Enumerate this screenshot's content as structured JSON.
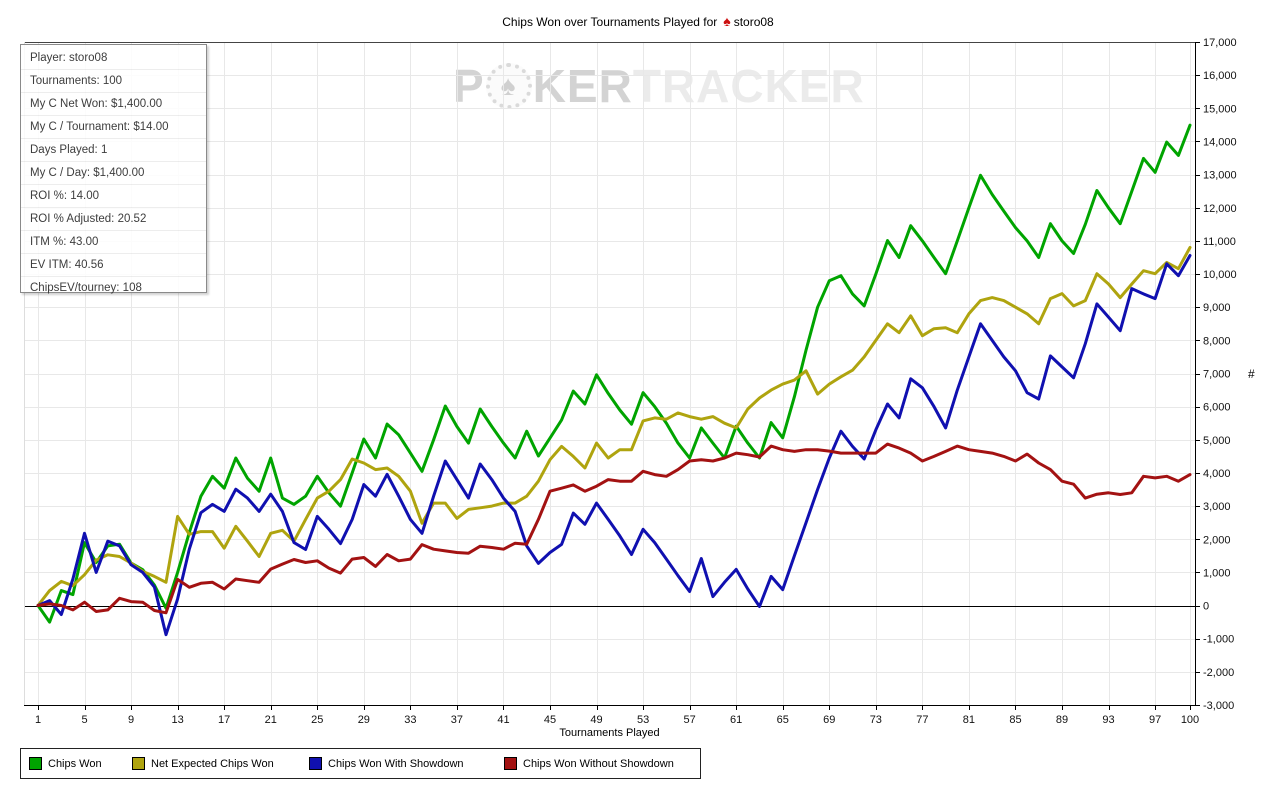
{
  "title": {
    "prefix": "Chips Won over Tournaments Played for",
    "player": "storo08",
    "spade_icon": "♠"
  },
  "watermark": {
    "p1": "P",
    "chip_symbol": "♠",
    "p2": "KER",
    "p3": "TRACKER"
  },
  "stats_panel": {
    "rows": [
      "Player: storo08",
      "Tournaments: 100",
      "My C Net Won: $1,400.00",
      "My C / Tournament: $14.00",
      "Days Played: 1",
      "My C / Day: $1,400.00",
      "ROI %: 14.00",
      "ROI % Adjusted: 20.52",
      "ITM %: 43.00",
      "EV ITM: 40.56",
      "ChipsEV/tourney: 108"
    ]
  },
  "axes": {
    "x": {
      "title": "Tournaments Played",
      "ticks": [
        1,
        5,
        9,
        13,
        17,
        21,
        25,
        29,
        33,
        37,
        41,
        45,
        49,
        53,
        57,
        61,
        65,
        69,
        73,
        77,
        81,
        85,
        89,
        93,
        97,
        100
      ]
    },
    "y": {
      "title": "#",
      "min": -3000,
      "max": 17000,
      "step": 1000
    }
  },
  "legend": {
    "item_offsets": [
      8,
      111,
      288,
      483
    ]
  },
  "colors": {
    "grid": "#e8e8e8",
    "axis": "#000000",
    "top_border": "#444444",
    "left_border": "#dddddd",
    "zero_line": "#000000"
  },
  "chart_data": {
    "type": "line",
    "title": "Chips Won over Tournaments Played for storo08",
    "xlabel": "Tournaments Played",
    "ylabel": "#",
    "x_start": 1,
    "x_end": 100,
    "ylim": [
      -3000,
      17000
    ],
    "y_tick_step": 1000,
    "grid": true,
    "legend_position": "bottom",
    "series": [
      {
        "name": "Chips Won",
        "color": "#00A400",
        "values": [
          0,
          -500,
          450,
          330,
          1900,
          1300,
          1800,
          1850,
          1280,
          1080,
          620,
          -80,
          1000,
          2200,
          3300,
          3900,
          3540,
          4450,
          3840,
          3450,
          4450,
          3240,
          3050,
          3300,
          3900,
          3400,
          3000,
          4000,
          5020,
          4450,
          5475,
          5150,
          4600,
          4050,
          5000,
          6020,
          5400,
          4900,
          5930,
          5400,
          4900,
          4450,
          5260,
          4510,
          5050,
          5600,
          6470,
          6080,
          6960,
          6400,
          5900,
          5470,
          6420,
          6000,
          5500,
          4900,
          4450,
          5360,
          4900,
          4450,
          5410,
          4900,
          4450,
          5520,
          5060,
          6300,
          7700,
          9000,
          9800,
          9950,
          9400,
          9040,
          10000,
          11010,
          10500,
          11460,
          11000,
          10500,
          10010,
          11000,
          12000,
          12980,
          12400,
          11900,
          11400,
          11000,
          10500,
          11520,
          11000,
          10620,
          11500,
          12520,
          12000,
          11520,
          12500,
          13490,
          13070,
          13980,
          13580,
          14490
        ]
      },
      {
        "name": "Net Expected Chips Won",
        "color": "#AFA40F",
        "values": [
          0,
          450,
          730,
          600,
          930,
          1370,
          1530,
          1480,
          1280,
          1030,
          880,
          700,
          2690,
          2150,
          2230,
          2230,
          1730,
          2390,
          1940,
          1480,
          2180,
          2270,
          1940,
          2600,
          3240,
          3450,
          3800,
          4420,
          4300,
          4100,
          4150,
          3900,
          3450,
          2480,
          3090,
          3090,
          2630,
          2900,
          2950,
          3000,
          3090,
          3090,
          3300,
          3750,
          4400,
          4800,
          4500,
          4150,
          4900,
          4450,
          4700,
          4700,
          5570,
          5660,
          5620,
          5810,
          5700,
          5620,
          5700,
          5500,
          5360,
          5930,
          6260,
          6500,
          6680,
          6800,
          7080,
          6380,
          6680,
          6900,
          7100,
          7500,
          8000,
          8500,
          8230,
          8740,
          8140,
          8350,
          8380,
          8230,
          8800,
          9200,
          9290,
          9200,
          9000,
          8800,
          8500,
          9260,
          9410,
          9040,
          9200,
          10010,
          9700,
          9290,
          9700,
          10100,
          10010,
          10350,
          10160,
          10800
        ]
      },
      {
        "name": "Chips Won With Showdown",
        "color": "#1010B0",
        "values": [
          0,
          150,
          -270,
          800,
          2180,
          1000,
          1940,
          1800,
          1230,
          1000,
          560,
          -880,
          200,
          1700,
          2800,
          3050,
          2840,
          3510,
          3240,
          2840,
          3360,
          2840,
          1900,
          1690,
          2690,
          2300,
          1870,
          2600,
          3650,
          3300,
          3960,
          3300,
          2600,
          2180,
          3300,
          4360,
          3800,
          3240,
          4270,
          3800,
          3240,
          2840,
          1800,
          1270,
          1600,
          1845,
          2790,
          2450,
          3090,
          2600,
          2100,
          1540,
          2300,
          1900,
          1400,
          900,
          425,
          1420,
          270,
          700,
          1090,
          500,
          -30,
          880,
          480,
          1500,
          2500,
          3500,
          4450,
          5260,
          4800,
          4420,
          5300,
          6080,
          5660,
          6840,
          6570,
          6000,
          5360,
          6500,
          7500,
          8500,
          8000,
          7500,
          7080,
          6420,
          6230,
          7530,
          7200,
          6870,
          7900,
          9100,
          8700,
          8290,
          9560,
          9400,
          9260,
          10310,
          9950,
          10560
        ]
      },
      {
        "name": "Chips Won Without Showdown",
        "color": "#A31212",
        "values": [
          0,
          50,
          0,
          -130,
          100,
          -180,
          -130,
          220,
          120,
          100,
          -150,
          -220,
          790,
          550,
          670,
          700,
          500,
          800,
          750,
          700,
          1100,
          1250,
          1390,
          1300,
          1350,
          1130,
          980,
          1400,
          1450,
          1180,
          1540,
          1350,
          1400,
          1840,
          1700,
          1650,
          1600,
          1580,
          1790,
          1750,
          1700,
          1880,
          1850,
          2600,
          3450,
          3540,
          3640,
          3450,
          3600,
          3800,
          3750,
          3750,
          4050,
          3950,
          3900,
          4100,
          4360,
          4400,
          4360,
          4450,
          4600,
          4550,
          4480,
          4810,
          4700,
          4650,
          4700,
          4700,
          4660,
          4600,
          4600,
          4600,
          4600,
          4870,
          4750,
          4600,
          4360,
          4500,
          4650,
          4810,
          4700,
          4650,
          4600,
          4500,
          4360,
          4570,
          4300,
          4100,
          3750,
          3660,
          3240,
          3360,
          3400,
          3350,
          3400,
          3900,
          3850,
          3900,
          3750,
          3950
        ]
      }
    ]
  }
}
